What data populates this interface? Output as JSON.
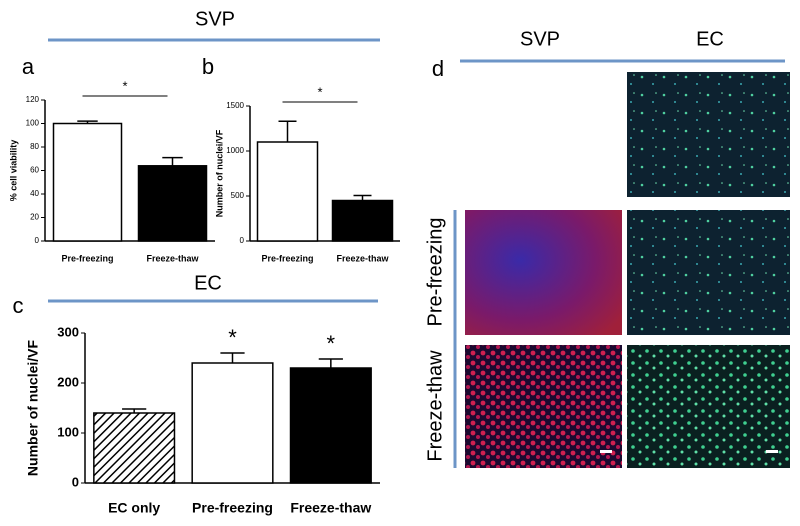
{
  "headings": {
    "svp_top": "SVP",
    "panel_a": "a",
    "panel_b": "b",
    "panel_c": "c",
    "ec_mid": "EC",
    "panel_d": "d",
    "d_svp": "SVP",
    "d_ec": "EC",
    "row_pre": "Pre-freezing",
    "row_thaw": "Freeze-thaw"
  },
  "chart_data": [
    {
      "type": "bar",
      "ylabel": "% cell viability",
      "categories": [
        "Pre-freezing",
        "Freeze-thaw"
      ],
      "values": [
        100,
        64
      ],
      "errors": [
        2,
        7
      ],
      "colors": [
        "#ffffff",
        "#000000"
      ],
      "ylim": [
        0,
        120
      ],
      "yticks": [
        0,
        20,
        40,
        60,
        80,
        100,
        120
      ],
      "bracket_label": "*"
    },
    {
      "type": "bar",
      "ylabel": "Number of nuclei/VF",
      "categories": [
        "Pre-freezing",
        "Freeze-thaw"
      ],
      "values": [
        1100,
        450
      ],
      "errors": [
        230,
        55
      ],
      "colors": [
        "#ffffff",
        "#000000"
      ],
      "ylim": [
        0,
        1500
      ],
      "yticks": [
        0,
        500,
        1000,
        1500
      ],
      "bracket_label": "*"
    },
    {
      "type": "bar",
      "ylabel": "Number of nuclei/VF",
      "categories": [
        "EC only",
        "Pre-freezing",
        "Freeze-thaw"
      ],
      "values": [
        140,
        240,
        230
      ],
      "errors": [
        8,
        20,
        18
      ],
      "colors": [
        "#ffffff",
        "#ffffff",
        "#000000"
      ],
      "hatch": [
        true,
        false,
        false
      ],
      "ylim": [
        0,
        300
      ],
      "yticks": [
        0,
        100,
        200,
        300
      ],
      "stars": [
        null,
        "*",
        "*"
      ]
    }
  ]
}
